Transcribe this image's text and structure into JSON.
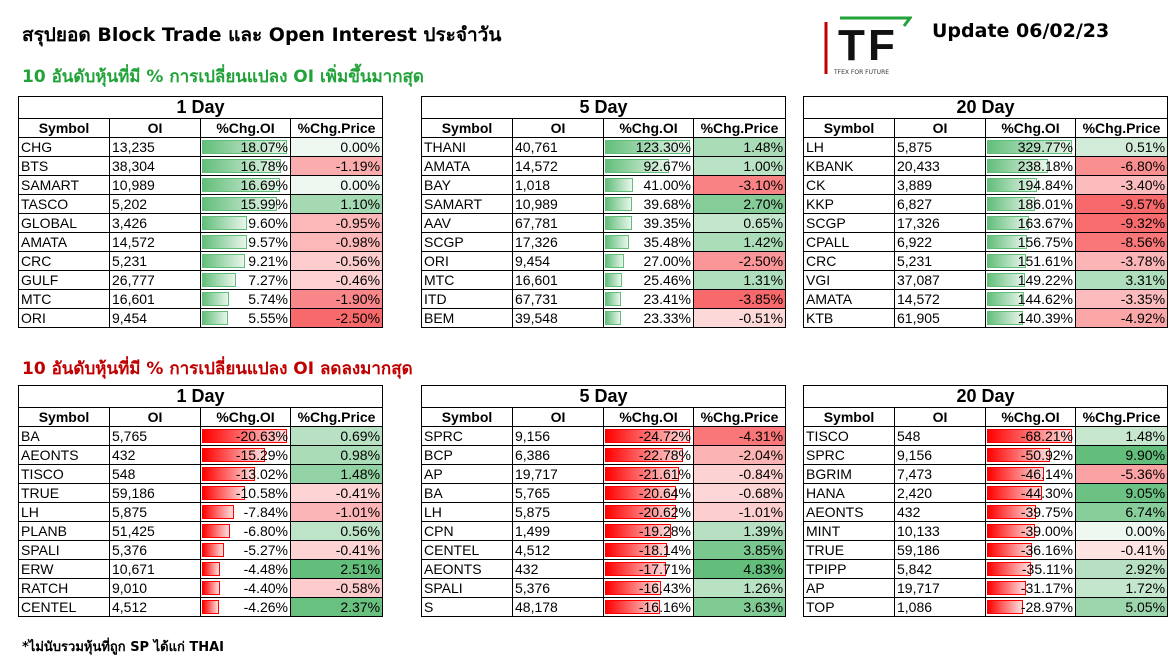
{
  "header": {
    "title": "สรุปยอด Block Trade และ Open Interest ประจำวัน",
    "update": "Update 06/02/23",
    "logo_text": "TF",
    "logo_sub": "TFEX FOR FUTURE"
  },
  "sections": {
    "increase_title": "10 อันดับหุ้นที่มี % การเปลี่ยนแปลง OI เพิ่มขึ้นมากสุด",
    "decrease_title": "10 อันดับหุ้นที่มี % การเปลี่ยนแปลง OI ลดลงมากสุด"
  },
  "columns": [
    "Symbol",
    "OI",
    "%Chg.OI",
    "%Chg.Price"
  ],
  "footnote": "*ไม่นับรวมหุ้นที่ถูก SP ได้แก่ THAI",
  "colors": {
    "increase_title": "#22a33a",
    "decrease_title": "#c00000",
    "bar_positive": "#63be7b",
    "bar_negative": "#ff0000",
    "price_up": "#63be7b",
    "price_down": "#f8696b"
  },
  "tables": [
    {
      "group": "increase",
      "caption": "1 Day",
      "rows": [
        [
          "CHG",
          "13,235",
          "18.07%",
          "0.00%"
        ],
        [
          "BTS",
          "38,304",
          "16.78%",
          "-1.19%"
        ],
        [
          "SAMART",
          "10,989",
          "16.69%",
          "0.00%"
        ],
        [
          "TASCO",
          "5,202",
          "15.99%",
          "1.10%"
        ],
        [
          "GLOBAL",
          "3,426",
          "9.60%",
          "-0.95%"
        ],
        [
          "AMATA",
          "14,572",
          "9.57%",
          "-0.98%"
        ],
        [
          "CRC",
          "5,231",
          "9.21%",
          "-0.56%"
        ],
        [
          "GULF",
          "26,777",
          "7.27%",
          "-0.46%"
        ],
        [
          "MTC",
          "16,601",
          "5.74%",
          "-1.90%"
        ],
        [
          "ORI",
          "9,454",
          "5.55%",
          "-2.50%"
        ]
      ]
    },
    {
      "group": "increase",
      "caption": "5 Day",
      "rows": [
        [
          "THANI",
          "40,761",
          "123.30%",
          "1.48%"
        ],
        [
          "AMATA",
          "14,572",
          "92.67%",
          "1.00%"
        ],
        [
          "BAY",
          "1,018",
          "41.00%",
          "-3.10%"
        ],
        [
          "SAMART",
          "10,989",
          "39.68%",
          "2.70%"
        ],
        [
          "AAV",
          "67,781",
          "39.35%",
          "0.65%"
        ],
        [
          "SCGP",
          "17,326",
          "35.48%",
          "1.42%"
        ],
        [
          "ORI",
          "9,454",
          "27.00%",
          "-2.50%"
        ],
        [
          "MTC",
          "16,601",
          "25.46%",
          "1.31%"
        ],
        [
          "ITD",
          "67,731",
          "23.41%",
          "-3.85%"
        ],
        [
          "BEM",
          "39,548",
          "23.33%",
          "-0.51%"
        ]
      ]
    },
    {
      "group": "increase",
      "caption": "20 Day",
      "rows": [
        [
          "LH",
          "5,875",
          "329.77%",
          "0.51%"
        ],
        [
          "KBANK",
          "20,433",
          "238.18%",
          "-6.80%"
        ],
        [
          "CK",
          "3,889",
          "194.84%",
          "-3.40%"
        ],
        [
          "KKP",
          "6,827",
          "186.01%",
          "-9.57%"
        ],
        [
          "SCGP",
          "17,326",
          "163.67%",
          "-9.32%"
        ],
        [
          "CPALL",
          "6,922",
          "156.75%",
          "-8.56%"
        ],
        [
          "CRC",
          "5,231",
          "151.61%",
          "-3.78%"
        ],
        [
          "VGI",
          "37,087",
          "149.22%",
          "3.31%"
        ],
        [
          "AMATA",
          "14,572",
          "144.62%",
          "-3.35%"
        ],
        [
          "KTB",
          "61,905",
          "140.39%",
          "-4.92%"
        ]
      ]
    },
    {
      "group": "decrease",
      "caption": "1 Day",
      "rows": [
        [
          "BA",
          "5,765",
          "-20.63%",
          "0.69%"
        ],
        [
          "AEONTS",
          "432",
          "-15.29%",
          "0.98%"
        ],
        [
          "TISCO",
          "548",
          "-13.02%",
          "1.48%"
        ],
        [
          "TRUE",
          "59,186",
          "-10.58%",
          "-0.41%"
        ],
        [
          "LH",
          "5,875",
          "-7.84%",
          "-1.01%"
        ],
        [
          "PLANB",
          "51,425",
          "-6.80%",
          "0.56%"
        ],
        [
          "SPALI",
          "5,376",
          "-5.27%",
          "-0.41%"
        ],
        [
          "ERW",
          "10,671",
          "-4.48%",
          "2.51%"
        ],
        [
          "RATCH",
          "9,010",
          "-4.40%",
          "-0.58%"
        ],
        [
          "CENTEL",
          "4,512",
          "-4.26%",
          "2.37%"
        ]
      ]
    },
    {
      "group": "decrease",
      "caption": "5 Day",
      "rows": [
        [
          "SPRC",
          "9,156",
          "-24.72%",
          "-4.31%"
        ],
        [
          "BCP",
          "6,386",
          "-22.78%",
          "-2.04%"
        ],
        [
          "AP",
          "19,717",
          "-21.61%",
          "-0.84%"
        ],
        [
          "BA",
          "5,765",
          "-20.64%",
          "-0.68%"
        ],
        [
          "LH",
          "5,875",
          "-20.62%",
          "-1.01%"
        ],
        [
          "CPN",
          "1,499",
          "-19.28%",
          "1.39%"
        ],
        [
          "CENTEL",
          "4,512",
          "-18.14%",
          "3.85%"
        ],
        [
          "AEONTS",
          "432",
          "-17.71%",
          "4.83%"
        ],
        [
          "SPALI",
          "5,376",
          "-16.43%",
          "1.26%"
        ],
        [
          "S",
          "48,178",
          "-16.16%",
          "3.63%"
        ]
      ]
    },
    {
      "group": "decrease",
      "caption": "20 Day",
      "rows": [
        [
          "TISCO",
          "548",
          "-68.21%",
          "1.48%"
        ],
        [
          "SPRC",
          "9,156",
          "-50.92%",
          "9.90%"
        ],
        [
          "BGRIM",
          "7,473",
          "-46.14%",
          "-5.36%"
        ],
        [
          "HANA",
          "2,420",
          "-44.30%",
          "9.05%"
        ],
        [
          "AEONTS",
          "432",
          "-39.75%",
          "6.74%"
        ],
        [
          "MINT",
          "10,133",
          "-39.00%",
          "0.00%"
        ],
        [
          "TRUE",
          "59,186",
          "-36.16%",
          "-0.41%"
        ],
        [
          "TPIPP",
          "5,842",
          "-35.11%",
          "2.92%"
        ],
        [
          "AP",
          "19,717",
          "-31.17%",
          "1.72%"
        ],
        [
          "TOP",
          "1,086",
          "-28.97%",
          "5.05%"
        ]
      ]
    }
  ]
}
